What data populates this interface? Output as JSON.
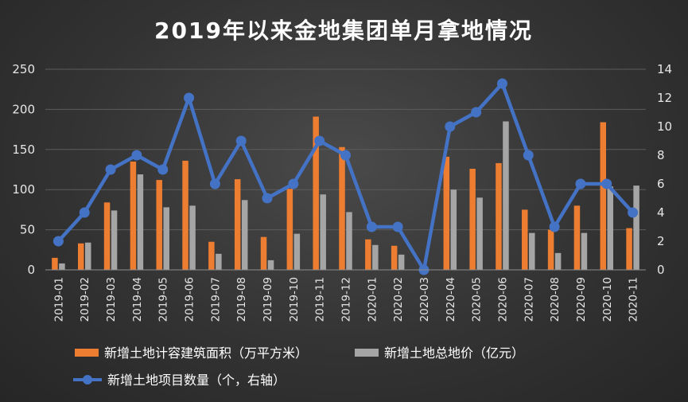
{
  "chart_data": {
    "type": "bar",
    "title": "2019年以来金地集团单月拿地情况",
    "categories": [
      "2019-01",
      "2019-02",
      "2019-03",
      "2019-04",
      "2019-05",
      "2019-06",
      "2019-07",
      "2019-08",
      "2019-09",
      "2019-10",
      "2019-11",
      "2019-12",
      "2020-01",
      "2020-02",
      "2020-03",
      "2020-04",
      "2020-05",
      "2020-06",
      "2020-07",
      "2020-08",
      "2020-09",
      "2020-10",
      "2020-11"
    ],
    "y_left": {
      "ylim": [
        0,
        250
      ],
      "ticks": [
        0,
        50,
        100,
        150,
        200,
        250
      ]
    },
    "y_right": {
      "ylim": [
        0,
        14
      ],
      "ticks": [
        0,
        2,
        4,
        6,
        8,
        10,
        12,
        14
      ]
    },
    "grid": true,
    "legend_position": "bottom",
    "series": [
      {
        "name": "新增土地计容建筑面积（万平方米）",
        "type": "bar",
        "axis": "left",
        "color": "#ed7d31",
        "values": [
          15,
          33,
          84,
          135,
          112,
          136,
          35,
          113,
          41,
          101,
          191,
          153,
          38,
          30,
          0,
          141,
          126,
          133,
          75,
          50,
          80,
          184,
          52
        ]
      },
      {
        "name": "新增土地总地价（亿元）",
        "type": "bar",
        "axis": "left",
        "color": "#a5a5a5",
        "values": [
          8,
          34,
          74,
          119,
          78,
          80,
          20,
          87,
          12,
          45,
          94,
          72,
          31,
          19,
          0,
          100,
          90,
          185,
          46,
          21,
          46,
          104,
          105
        ]
      },
      {
        "name": "新增土地项目数量（个，右轴）",
        "type": "line",
        "axis": "right",
        "color": "#4472c4",
        "values": [
          2,
          4,
          7,
          8,
          7,
          12,
          6,
          9,
          5,
          6,
          9,
          8,
          3,
          3,
          0,
          10,
          11,
          13,
          8,
          3,
          6,
          6,
          4
        ]
      }
    ]
  }
}
